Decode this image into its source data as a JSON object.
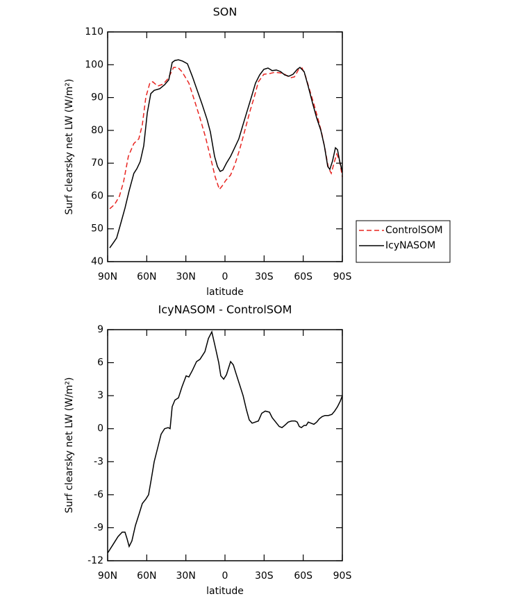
{
  "chart_data": [
    {
      "type": "line",
      "title": "SON",
      "xlabel": "latitude",
      "ylabel": "Surf clearsky net LW (W/m²)",
      "xlim": [
        90,
        -90
      ],
      "xticks": [
        {
          "value": 90,
          "label": "90N"
        },
        {
          "value": 60,
          "label": "60N"
        },
        {
          "value": 30,
          "label": "30N"
        },
        0,
        {
          "value": -30,
          "label": "30S"
        },
        {
          "value": -60,
          "label": "60S"
        },
        {
          "value": -90,
          "label": "90S"
        }
      ],
      "ylim": [
        40,
        110
      ],
      "yticks": [
        40,
        50,
        60,
        70,
        80,
        90,
        100,
        110
      ],
      "legend_position": "right",
      "series": [
        {
          "name": "ControlSOM",
          "color": "#e8231f",
          "dash": "dashed",
          "x": [
            88.4,
            84.7,
            81,
            77.8,
            74.1,
            69.9,
            66.1,
            63.4,
            60.7,
            57.5,
            55.4,
            51.6,
            47.4,
            43.6,
            39.4,
            36.2,
            33,
            27.7,
            23.4,
            19.2,
            14.9,
            10.7,
            7.5,
            4.3,
            2.1,
            -0.5,
            -4.3,
            -7.4,
            -11.2,
            -14.9,
            -19.2,
            -22.4,
            -25.6,
            -29.8,
            -34.1,
            -38.3,
            -42.6,
            -45.8,
            -50.1,
            -53.3,
            -56.5,
            -59.1,
            -61.8,
            -65,
            -68.2,
            -71.4,
            -74,
            -76.7,
            -79.3,
            -81.5,
            -83.6,
            -85.7,
            -87.9,
            -90
          ],
          "values": [
            56.1,
            57.4,
            59.9,
            64.3,
            72.1,
            76,
            77.4,
            81.7,
            90.1,
            94.6,
            94.8,
            93.5,
            94.1,
            95.8,
            99.2,
            99.2,
            97.9,
            94.4,
            89.1,
            83.8,
            77.9,
            71.1,
            65.8,
            62,
            63.1,
            64.7,
            66.4,
            69.4,
            74.1,
            79.5,
            85.9,
            90.1,
            94.8,
            97.1,
            97.3,
            97.7,
            97.5,
            97.1,
            96,
            96.3,
            98.6,
            99,
            96.5,
            92.2,
            88,
            83.4,
            79.5,
            74.3,
            68.6,
            66.9,
            70,
            72.8,
            70.7,
            65.8
          ]
        },
        {
          "name": "IcyNASOM",
          "color": "#000000",
          "dash": "solid",
          "x": [
            88.4,
            85.7,
            83.1,
            80.4,
            76.7,
            73.5,
            69.9,
            67.6,
            65,
            62.3,
            59.6,
            56.9,
            54.3,
            50,
            46.3,
            43.1,
            40.5,
            38.4,
            35.7,
            32.5,
            28.8,
            25,
            21.3,
            17.6,
            13.8,
            11.2,
            8,
            5.8,
            3.7,
            1.6,
            -1.1,
            -4.3,
            -7.4,
            -10.6,
            -13.8,
            -17,
            -20.2,
            -23.4,
            -26.6,
            -29.8,
            -33,
            -36.2,
            -39.4,
            -42.6,
            -45.8,
            -49,
            -52.2,
            -55.4,
            -57.5,
            -60.7,
            -63.9,
            -67.1,
            -70.3,
            -73.5,
            -76.2,
            -78.8,
            -80.4,
            -82.5,
            -84.7,
            -86.3,
            -87.9,
            -90
          ],
          "values": [
            44.2,
            45.7,
            47.2,
            51,
            56.3,
            61.6,
            66.9,
            68.3,
            70.5,
            75.3,
            85.3,
            91.2,
            92.2,
            92.7,
            93.9,
            95.4,
            100.7,
            101.3,
            101.5,
            101.1,
            100.3,
            96.4,
            92.2,
            88,
            83.4,
            79.5,
            72.1,
            69,
            67.5,
            67.9,
            70,
            72.1,
            74.7,
            77.4,
            81.7,
            85.9,
            90.1,
            94.4,
            96.9,
            98.6,
            99,
            98.2,
            98.4,
            97.9,
            96.9,
            96.5,
            97.1,
            98.6,
            99.2,
            97.9,
            93.3,
            88.4,
            83.8,
            80,
            75.3,
            69,
            68.1,
            70.7,
            74.7,
            74.1,
            70.7,
            67.3
          ]
        }
      ]
    },
    {
      "type": "line",
      "title": "IcyNASOM - ControlSOM",
      "xlabel": "latitude",
      "ylabel": "Surf clearsky net LW (W/m²)",
      "xlim": [
        90,
        -90
      ],
      "xticks": [
        {
          "value": 90,
          "label": "90N"
        },
        {
          "value": 60,
          "label": "60N"
        },
        {
          "value": 30,
          "label": "30N"
        },
        0,
        {
          "value": -30,
          "label": "30S"
        },
        {
          "value": -60,
          "label": "60S"
        },
        {
          "value": -90,
          "label": "90S"
        }
      ],
      "ylim": [
        -12,
        9
      ],
      "yticks": [
        -12,
        -9,
        -6,
        -3,
        0,
        3,
        6,
        9
      ],
      "color": "#000000",
      "x": [
        90,
        85.7,
        82,
        78.8,
        76.7,
        75.1,
        73.5,
        71.4,
        68.7,
        66,
        63.4,
        60.7,
        58.6,
        56.4,
        54.3,
        51.1,
        49,
        46.3,
        43.6,
        42.1,
        40.5,
        38.4,
        35.7,
        33,
        29.8,
        27.7,
        25,
        21.8,
        19.2,
        15.4,
        12.7,
        10.1,
        7.4,
        4.8,
        3.2,
        1,
        -1.1,
        -4.3,
        -6.4,
        -8.5,
        -11.2,
        -13.9,
        -16.5,
        -18.6,
        -20.8,
        -25.6,
        -28.2,
        -30.9,
        -34.1,
        -36.2,
        -38.9,
        -41.6,
        -43.7,
        -45.8,
        -48.5,
        -51.1,
        -53.8,
        -55.4,
        -57,
        -58.6,
        -60.7,
        -62.3,
        -63.9,
        -66,
        -68.2,
        -70.3,
        -72.4,
        -74.5,
        -76.7,
        -79.3,
        -82,
        -84.1,
        -86.3,
        -88.4,
        -90
      ],
      "values": [
        -11.3,
        -10.5,
        -9.8,
        -9.4,
        -9.4,
        -10,
        -10.7,
        -10.2,
        -8.8,
        -7.8,
        -6.8,
        -6.4,
        -6,
        -4.5,
        -3,
        -1.5,
        -0.5,
        0,
        0.1,
        0,
        2,
        2.6,
        2.8,
        3.8,
        4.8,
        4.7,
        5.3,
        6.1,
        6.3,
        7,
        8.2,
        8.8,
        7.4,
        6,
        4.8,
        4.5,
        4.9,
        6.1,
        5.8,
        5,
        4,
        3,
        1.7,
        0.8,
        0.5,
        0.7,
        1.4,
        1.6,
        1.5,
        1,
        0.6,
        0.2,
        0.1,
        0.3,
        0.6,
        0.7,
        0.7,
        0.6,
        0.2,
        0.1,
        0.3,
        0.3,
        0.6,
        0.5,
        0.4,
        0.6,
        0.9,
        1.1,
        1.2,
        1.2,
        1.3,
        1.6,
        2,
        2.5,
        3
      ]
    }
  ]
}
